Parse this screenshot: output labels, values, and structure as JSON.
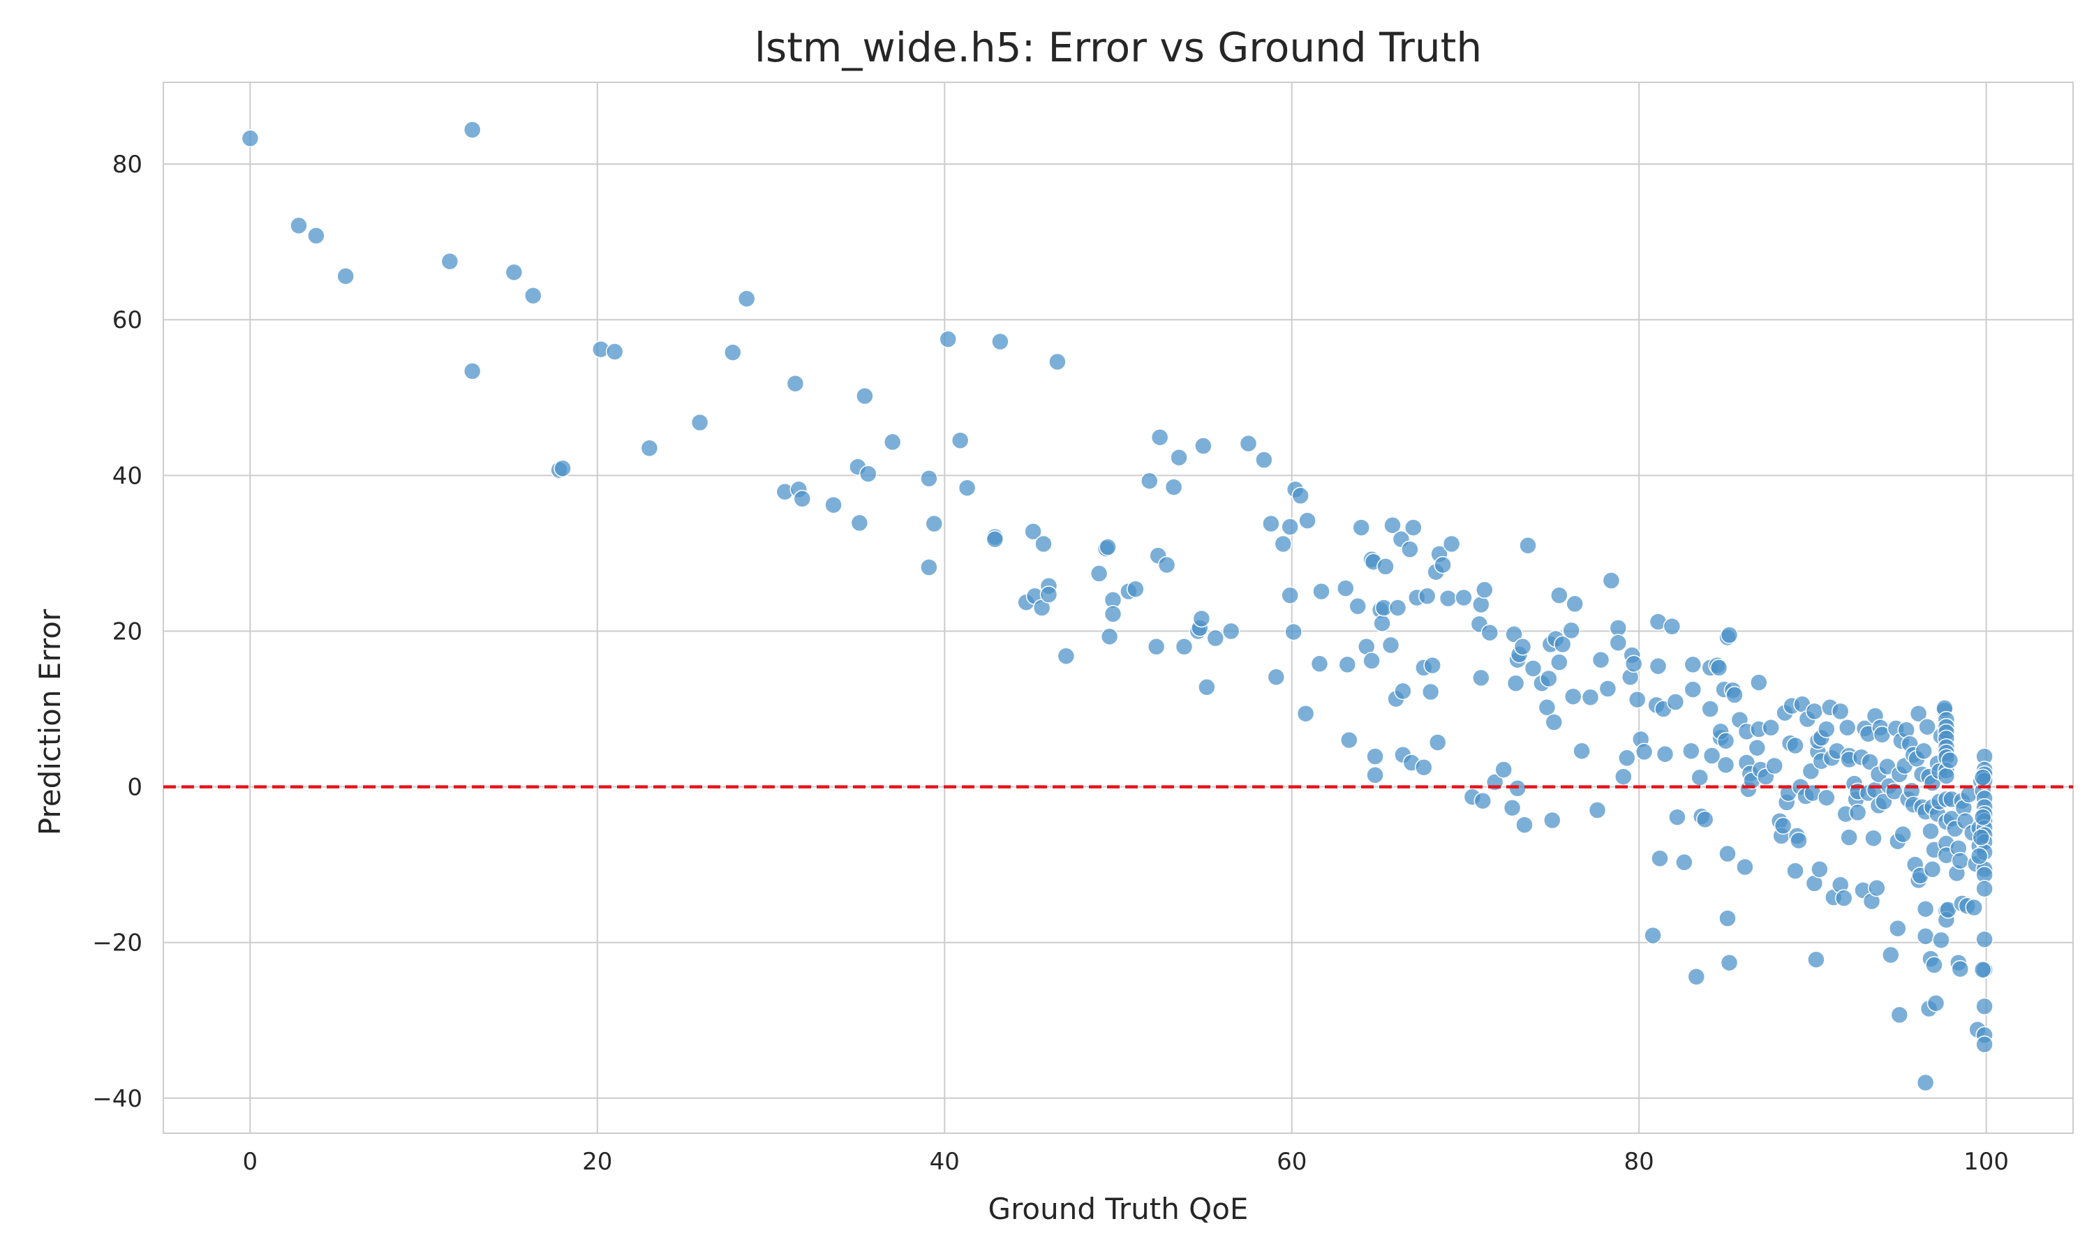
{
  "chart_data": {
    "type": "scatter",
    "title": "lstm_wide.h5: Error vs Ground Truth",
    "xlabel": "Ground Truth QoE",
    "ylabel": "Prediction Error",
    "xlim": [
      -5,
      105
    ],
    "ylim": [
      -44.5,
      90.5
    ],
    "xticks": [
      0,
      20,
      40,
      60,
      80,
      100
    ],
    "xtick_labels": [
      "0",
      "20",
      "40",
      "60",
      "80",
      "100"
    ],
    "yticks": [
      -40,
      -20,
      0,
      20,
      40,
      60,
      80
    ],
    "ytick_labels": [
      "−40",
      "−20",
      "0",
      "20",
      "40",
      "60",
      "80"
    ],
    "grid": true,
    "reference_line": {
      "y": 0,
      "style": "dashed",
      "color": "#e8141b"
    },
    "marker_color": "#4a90c8",
    "points": [
      [
        0.0,
        83.3
      ],
      [
        12.8,
        84.4
      ],
      [
        2.8,
        72.1
      ],
      [
        3.8,
        70.8
      ],
      [
        5.5,
        65.6
      ],
      [
        11.5,
        67.5
      ],
      [
        15.2,
        66.1
      ],
      [
        16.3,
        63.1
      ],
      [
        12.8,
        53.4
      ],
      [
        17.8,
        40.7
      ],
      [
        18.0,
        40.9
      ],
      [
        20.2,
        56.2
      ],
      [
        21.0,
        55.9
      ],
      [
        23.0,
        43.5
      ],
      [
        25.9,
        46.8
      ],
      [
        27.8,
        55.8
      ],
      [
        28.6,
        62.7
      ],
      [
        31.4,
        51.8
      ],
      [
        30.8,
        37.9
      ],
      [
        31.6,
        38.2
      ],
      [
        31.8,
        37.0
      ],
      [
        33.6,
        36.2
      ],
      [
        35.0,
        41.1
      ],
      [
        35.1,
        33.9
      ],
      [
        35.4,
        50.2
      ],
      [
        35.6,
        40.2
      ],
      [
        37.0,
        44.3
      ],
      [
        39.1,
        39.6
      ],
      [
        39.1,
        28.2
      ],
      [
        39.4,
        33.8
      ],
      [
        40.2,
        57.5
      ],
      [
        40.9,
        44.5
      ],
      [
        41.3,
        38.4
      ],
      [
        42.9,
        32.1
      ],
      [
        42.9,
        31.8
      ],
      [
        43.2,
        57.2
      ],
      [
        44.7,
        23.7
      ],
      [
        45.1,
        32.8
      ],
      [
        45.2,
        24.5
      ],
      [
        45.6,
        23.0
      ],
      [
        45.7,
        31.2
      ],
      [
        46.0,
        25.8
      ],
      [
        46.0,
        24.7
      ],
      [
        46.5,
        54.6
      ],
      [
        47.0,
        16.8
      ],
      [
        48.9,
        27.4
      ],
      [
        49.3,
        30.6
      ],
      [
        49.4,
        30.8
      ],
      [
        49.5,
        19.3
      ],
      [
        49.7,
        24.0
      ],
      [
        49.7,
        22.2
      ],
      [
        50.6,
        25.1
      ],
      [
        51.0,
        25.4
      ],
      [
        51.8,
        39.3
      ],
      [
        52.2,
        18.0
      ],
      [
        52.3,
        29.7
      ],
      [
        52.4,
        44.9
      ],
      [
        52.8,
        28.5
      ],
      [
        53.2,
        38.5
      ],
      [
        53.5,
        42.3
      ],
      [
        53.8,
        18.0
      ],
      [
        54.6,
        20.0
      ],
      [
        54.7,
        20.4
      ],
      [
        54.8,
        21.6
      ],
      [
        54.9,
        43.8
      ],
      [
        55.1,
        12.8
      ],
      [
        55.6,
        19.1
      ],
      [
        56.5,
        20.0
      ],
      [
        57.5,
        44.1
      ],
      [
        58.4,
        42.0
      ],
      [
        58.8,
        33.8
      ],
      [
        59.1,
        14.1
      ],
      [
        59.5,
        31.2
      ],
      [
        59.9,
        33.4
      ],
      [
        59.9,
        24.6
      ],
      [
        60.1,
        19.9
      ],
      [
        60.2,
        38.2
      ],
      [
        60.5,
        37.4
      ],
      [
        60.8,
        9.4
      ],
      [
        60.9,
        34.2
      ],
      [
        61.7,
        25.1
      ],
      [
        61.6,
        15.8
      ],
      [
        63.1,
        25.5
      ],
      [
        63.2,
        15.7
      ],
      [
        63.3,
        6.0
      ],
      [
        63.8,
        23.2
      ],
      [
        64.0,
        33.3
      ],
      [
        64.3,
        18.0
      ],
      [
        64.6,
        16.2
      ],
      [
        64.6,
        29.2
      ],
      [
        64.7,
        28.9
      ],
      [
        64.8,
        3.9
      ],
      [
        64.8,
        1.5
      ],
      [
        65.1,
        22.7
      ],
      [
        65.2,
        21.0
      ],
      [
        65.3,
        23.0
      ],
      [
        65.4,
        28.3
      ],
      [
        65.7,
        18.2
      ],
      [
        65.8,
        33.6
      ],
      [
        66.0,
        11.3
      ],
      [
        66.1,
        23.0
      ],
      [
        66.3,
        31.8
      ],
      [
        66.4,
        12.3
      ],
      [
        66.4,
        4.1
      ],
      [
        66.8,
        30.5
      ],
      [
        66.9,
        3.1
      ],
      [
        67.0,
        33.3
      ],
      [
        67.2,
        24.3
      ],
      [
        67.6,
        2.5
      ],
      [
        67.6,
        15.3
      ],
      [
        67.8,
        24.5
      ],
      [
        68.0,
        12.2
      ],
      [
        68.1,
        15.6
      ],
      [
        68.3,
        27.6
      ],
      [
        68.4,
        5.7
      ],
      [
        68.5,
        29.9
      ],
      [
        68.7,
        28.5
      ],
      [
        69.0,
        24.2
      ],
      [
        69.2,
        31.2
      ],
      [
        69.9,
        24.3
      ],
      [
        70.4,
        -1.3
      ],
      [
        70.8,
        20.9
      ],
      [
        70.9,
        14.0
      ],
      [
        70.9,
        23.4
      ],
      [
        71.0,
        -1.8
      ],
      [
        71.1,
        25.3
      ],
      [
        71.4,
        19.8
      ],
      [
        71.7,
        0.6
      ],
      [
        72.2,
        2.2
      ],
      [
        72.7,
        -2.7
      ],
      [
        72.8,
        19.6
      ],
      [
        72.9,
        13.3
      ],
      [
        73.0,
        16.3
      ],
      [
        73.0,
        -0.2
      ],
      [
        73.1,
        17.0
      ],
      [
        73.3,
        18.0
      ],
      [
        73.4,
        -4.9
      ],
      [
        73.6,
        31.0
      ],
      [
        73.9,
        15.2
      ],
      [
        74.4,
        13.3
      ],
      [
        74.7,
        10.2
      ],
      [
        74.8,
        13.9
      ],
      [
        74.9,
        18.3
      ],
      [
        75.0,
        -4.3
      ],
      [
        75.1,
        8.3
      ],
      [
        75.2,
        19.0
      ],
      [
        75.4,
        16.0
      ],
      [
        75.4,
        24.6
      ],
      [
        75.6,
        18.3
      ],
      [
        76.1,
        20.1
      ],
      [
        76.2,
        11.6
      ],
      [
        76.3,
        23.5
      ],
      [
        76.7,
        4.6
      ],
      [
        77.2,
        11.5
      ],
      [
        77.6,
        -3.0
      ],
      [
        77.8,
        16.3
      ],
      [
        78.2,
        12.6
      ],
      [
        78.4,
        26.5
      ],
      [
        78.8,
        20.4
      ],
      [
        78.8,
        18.5
      ],
      [
        79.1,
        1.3
      ],
      [
        79.3,
        3.7
      ],
      [
        79.5,
        14.1
      ],
      [
        79.6,
        16.9
      ],
      [
        79.7,
        15.8
      ],
      [
        79.9,
        11.2
      ],
      [
        80.1,
        6.1
      ],
      [
        80.3,
        4.5
      ],
      [
        80.8,
        -19.1
      ],
      [
        81.0,
        10.5
      ],
      [
        81.1,
        21.2
      ],
      [
        81.1,
        15.5
      ],
      [
        81.2,
        -9.2
      ],
      [
        81.4,
        10.0
      ],
      [
        81.5,
        4.2
      ],
      [
        81.9,
        20.6
      ],
      [
        82.1,
        10.9
      ],
      [
        82.2,
        -3.9
      ],
      [
        82.6,
        -9.7
      ],
      [
        83.0,
        4.6
      ],
      [
        83.1,
        12.5
      ],
      [
        83.1,
        15.7
      ],
      [
        83.3,
        -24.4
      ],
      [
        83.5,
        1.2
      ],
      [
        83.6,
        -3.8
      ],
      [
        83.8,
        -4.2
      ],
      [
        84.1,
        15.3
      ],
      [
        84.1,
        10.0
      ],
      [
        84.2,
        4.0
      ],
      [
        84.5,
        15.6
      ],
      [
        84.6,
        15.3
      ],
      [
        84.7,
        6.3
      ],
      [
        84.7,
        7.1
      ],
      [
        84.9,
        12.5
      ],
      [
        85.0,
        5.9
      ],
      [
        85.0,
        2.8
      ],
      [
        85.1,
        19.2
      ],
      [
        85.1,
        -8.6
      ],
      [
        85.1,
        -16.9
      ],
      [
        85.2,
        19.5
      ],
      [
        85.2,
        -22.6
      ],
      [
        85.4,
        12.4
      ],
      [
        85.5,
        11.8
      ],
      [
        85.8,
        8.6
      ],
      [
        86.1,
        -10.3
      ],
      [
        86.2,
        3.1
      ],
      [
        86.2,
        7.1
      ],
      [
        86.3,
        -0.3
      ],
      [
        86.4,
        1.7
      ],
      [
        86.5,
        0.8
      ],
      [
        86.8,
        5.0
      ],
      [
        86.9,
        7.4
      ],
      [
        86.9,
        13.4
      ],
      [
        87.0,
        2.2
      ],
      [
        87.3,
        1.3
      ],
      [
        87.6,
        7.6
      ],
      [
        87.8,
        2.7
      ],
      [
        88.1,
        -4.4
      ],
      [
        88.2,
        -6.3
      ],
      [
        88.3,
        -5.0
      ],
      [
        88.4,
        9.5
      ],
      [
        88.5,
        -2.0
      ],
      [
        88.6,
        -0.8
      ],
      [
        88.7,
        5.6
      ],
      [
        88.8,
        10.4
      ],
      [
        89.0,
        5.3
      ],
      [
        89.0,
        -10.8
      ],
      [
        89.1,
        -6.3
      ],
      [
        89.2,
        -6.9
      ],
      [
        89.3,
        0.0
      ],
      [
        89.4,
        10.6
      ],
      [
        89.6,
        -1.2
      ],
      [
        89.7,
        8.7
      ],
      [
        89.9,
        2.0
      ],
      [
        90.0,
        -0.8
      ],
      [
        90.1,
        9.7
      ],
      [
        90.1,
        -12.4
      ],
      [
        90.2,
        -22.2
      ],
      [
        90.3,
        4.5
      ],
      [
        90.3,
        5.9
      ],
      [
        90.4,
        -10.6
      ],
      [
        90.5,
        3.3
      ],
      [
        90.5,
        6.3
      ],
      [
        90.8,
        7.4
      ],
      [
        90.8,
        -1.4
      ],
      [
        91.0,
        10.2
      ],
      [
        91.1,
        3.7
      ],
      [
        91.2,
        -14.2
      ],
      [
        91.4,
        4.6
      ],
      [
        91.6,
        9.7
      ],
      [
        91.6,
        -12.6
      ],
      [
        91.8,
        -14.3
      ],
      [
        91.9,
        -3.5
      ],
      [
        92.0,
        7.6
      ],
      [
        92.1,
        4.0
      ],
      [
        92.1,
        3.5
      ],
      [
        92.1,
        -6.5
      ],
      [
        92.4,
        0.4
      ],
      [
        92.5,
        -1.6
      ],
      [
        92.6,
        -3.3
      ],
      [
        92.6,
        -0.6
      ],
      [
        92.8,
        3.8
      ],
      [
        92.9,
        -13.3
      ],
      [
        93.0,
        7.5
      ],
      [
        93.2,
        -0.8
      ],
      [
        93.2,
        6.8
      ],
      [
        93.3,
        3.2
      ],
      [
        93.4,
        -14.7
      ],
      [
        93.5,
        -6.6
      ],
      [
        93.6,
        9.1
      ],
      [
        93.6,
        -0.4
      ],
      [
        93.7,
        -13.0
      ],
      [
        93.8,
        1.6
      ],
      [
        93.8,
        -2.4
      ],
      [
        93.9,
        7.6
      ],
      [
        94.0,
        6.7
      ],
      [
        94.1,
        -1.9
      ],
      [
        94.3,
        2.6
      ],
      [
        94.4,
        0.1
      ],
      [
        94.5,
        -21.6
      ],
      [
        94.7,
        -0.6
      ],
      [
        94.8,
        7.5
      ],
      [
        94.9,
        -18.2
      ],
      [
        94.9,
        -7.0
      ],
      [
        95.0,
        -29.3
      ],
      [
        95.0,
        1.6
      ],
      [
        95.1,
        5.9
      ],
      [
        95.2,
        -6.1
      ],
      [
        95.3,
        2.7
      ],
      [
        95.4,
        7.3
      ],
      [
        95.5,
        -1.6
      ],
      [
        95.6,
        5.5
      ],
      [
        95.7,
        -0.5
      ],
      [
        95.8,
        -2.3
      ],
      [
        95.8,
        4.1
      ],
      [
        95.9,
        -10.0
      ],
      [
        96.0,
        3.6
      ],
      [
        96.1,
        9.4
      ],
      [
        96.1,
        -12.0
      ],
      [
        96.2,
        -11.4
      ],
      [
        96.3,
        -2.6
      ],
      [
        96.3,
        1.6
      ],
      [
        96.4,
        4.6
      ],
      [
        96.5,
        -3.2
      ],
      [
        96.5,
        -19.2
      ],
      [
        96.5,
        -15.7
      ],
      [
        96.5,
        -38.0
      ],
      [
        96.6,
        7.7
      ],
      [
        96.7,
        1.3
      ],
      [
        96.7,
        -28.5
      ],
      [
        96.8,
        -5.7
      ],
      [
        96.8,
        -22.1
      ],
      [
        96.9,
        -2.6
      ],
      [
        96.9,
        -10.6
      ],
      [
        96.9,
        0.5
      ],
      [
        97.0,
        -8.1
      ],
      [
        97.0,
        -22.9
      ],
      [
        97.1,
        -27.8
      ],
      [
        97.2,
        3.0
      ],
      [
        97.2,
        -3.5
      ],
      [
        97.3,
        2.0
      ],
      [
        97.3,
        -1.9
      ],
      [
        97.4,
        6.5
      ],
      [
        97.4,
        -19.7
      ],
      [
        97.6,
        9.8
      ],
      [
        97.6,
        10.1
      ],
      [
        97.7,
        8.6
      ],
      [
        97.7,
        7.7
      ],
      [
        97.7,
        7.0
      ],
      [
        97.7,
        6.2
      ],
      [
        97.7,
        5.1
      ],
      [
        97.7,
        4.4
      ],
      [
        97.7,
        3.8
      ],
      [
        97.7,
        2.1
      ],
      [
        97.7,
        1.4
      ],
      [
        97.7,
        -1.6
      ],
      [
        97.7,
        -4.5
      ],
      [
        97.7,
        -7.3
      ],
      [
        97.7,
        -8.8
      ],
      [
        97.7,
        -15.9
      ],
      [
        97.7,
        -17.1
      ],
      [
        97.8,
        -15.8
      ],
      [
        97.9,
        3.4
      ],
      [
        98.0,
        -4.1
      ],
      [
        98.0,
        -1.6
      ],
      [
        98.2,
        -5.4
      ],
      [
        98.3,
        -11.1
      ],
      [
        98.4,
        -7.9
      ],
      [
        98.4,
        -22.6
      ],
      [
        98.5,
        -9.5
      ],
      [
        98.5,
        -23.4
      ],
      [
        98.6,
        -15.0
      ],
      [
        98.6,
        -1.8
      ],
      [
        98.7,
        -2.7
      ],
      [
        98.8,
        -4.4
      ],
      [
        98.9,
        -15.3
      ],
      [
        99.0,
        -1.0
      ],
      [
        99.2,
        -5.9
      ],
      [
        99.3,
        -15.5
      ],
      [
        99.4,
        -9.9
      ],
      [
        99.5,
        -31.2
      ],
      [
        99.6,
        -5.3
      ],
      [
        99.6,
        -7.6
      ],
      [
        99.7,
        0.7
      ],
      [
        99.8,
        -0.5
      ],
      [
        99.9,
        3.9
      ],
      [
        99.9,
        2.2
      ],
      [
        99.9,
        1.6
      ],
      [
        99.9,
        0.8
      ],
      [
        99.9,
        -1.5
      ],
      [
        99.9,
        -2.6
      ],
      [
        99.9,
        -3.5
      ],
      [
        99.9,
        -4.4
      ],
      [
        99.9,
        -5.3
      ],
      [
        99.9,
        -6.2
      ],
      [
        99.9,
        -7.1
      ],
      [
        99.9,
        -8.4
      ],
      [
        99.9,
        -10.6
      ],
      [
        99.9,
        -11.3
      ],
      [
        99.9,
        -13.1
      ],
      [
        99.9,
        -19.6
      ],
      [
        99.9,
        -23.5
      ],
      [
        99.9,
        -28.2
      ],
      [
        99.9,
        -31.9
      ],
      [
        99.9,
        -33.1
      ],
      [
        99.8,
        1.2
      ],
      [
        99.8,
        -3.9
      ],
      [
        99.8,
        -23.5
      ],
      [
        99.7,
        -6.5
      ],
      [
        99.6,
        -8.9
      ]
    ]
  }
}
